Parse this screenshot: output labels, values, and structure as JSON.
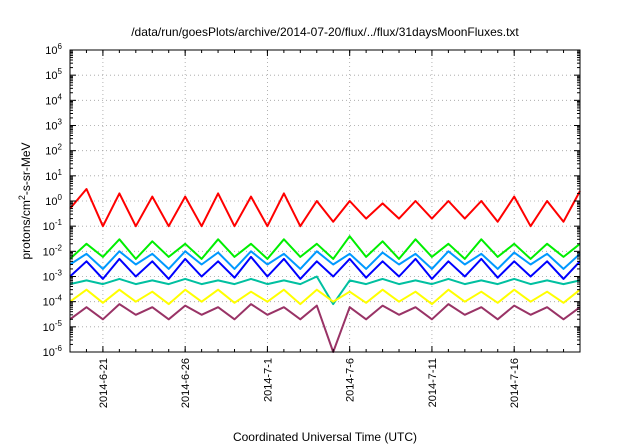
{
  "chart_data": {
    "type": "line",
    "title": "/data/run/goesPlots/archive/2014-07-20/flux/../flux/31daysMoonFluxes.txt",
    "xlabel": "Coordinated Universal Time (UTC)",
    "ylabel": {
      "base": "protons/cm",
      "sup": "2",
      "rest": "-s-sr-MeV"
    },
    "x_range": [
      "2014-06-19",
      "2014-07-20"
    ],
    "x_ticks": [
      "2014-6-21",
      "2014-6-26",
      "2014-7-1",
      "2014-7-6",
      "2014-7-11",
      "2014-7-16"
    ],
    "y_scale": "log",
    "ylim": [
      1e-06,
      1000000.0
    ],
    "y_ticks": [
      {
        "base": "10",
        "exp": "-6"
      },
      {
        "base": "10",
        "exp": "-5"
      },
      {
        "base": "10",
        "exp": "-4"
      },
      {
        "base": "10",
        "exp": "-3"
      },
      {
        "base": "10",
        "exp": "-2"
      },
      {
        "base": "10",
        "exp": "-1"
      },
      {
        "base": "10",
        "exp": "0"
      },
      {
        "base": "10",
        "exp": "1"
      },
      {
        "base": "10",
        "exp": "2"
      },
      {
        "base": "10",
        "exp": "3"
      },
      {
        "base": "10",
        "exp": "4"
      },
      {
        "base": "10",
        "exp": "5"
      },
      {
        "base": "10",
        "exp": "6"
      }
    ],
    "grid": true,
    "series": [
      {
        "color": "#ff0000",
        "x": [
          "2014-06-19",
          "2014-06-20",
          "2014-06-21",
          "2014-06-22",
          "2014-06-23",
          "2014-06-24",
          "2014-06-25",
          "2014-06-26",
          "2014-06-27",
          "2014-06-28",
          "2014-06-29",
          "2014-06-30",
          "2014-07-01",
          "2014-07-02",
          "2014-07-03",
          "2014-07-04",
          "2014-07-05",
          "2014-07-06",
          "2014-07-07",
          "2014-07-08",
          "2014-07-09",
          "2014-07-10",
          "2014-07-11",
          "2014-07-12",
          "2014-07-13",
          "2014-07-14",
          "2014-07-15",
          "2014-07-16",
          "2014-07-17",
          "2014-07-18",
          "2014-07-19",
          "2014-07-20"
        ],
        "values": [
          0.5,
          3,
          0.1,
          2,
          0.1,
          1.5,
          0.1,
          1.5,
          0.1,
          2,
          0.1,
          1.5,
          0.1,
          2,
          0.1,
          1,
          0.15,
          1,
          0.2,
          0.8,
          0.2,
          1,
          0.2,
          1,
          0.2,
          1,
          0.15,
          1.5,
          0.1,
          1,
          0.15,
          2.5
        ]
      },
      {
        "color": "#00ee00",
        "x": [
          "2014-06-19",
          "2014-06-20",
          "2014-06-21",
          "2014-06-22",
          "2014-06-23",
          "2014-06-24",
          "2014-06-25",
          "2014-06-26",
          "2014-06-27",
          "2014-06-28",
          "2014-06-29",
          "2014-06-30",
          "2014-07-01",
          "2014-07-02",
          "2014-07-03",
          "2014-07-04",
          "2014-07-05",
          "2014-07-06",
          "2014-07-07",
          "2014-07-08",
          "2014-07-09",
          "2014-07-10",
          "2014-07-11",
          "2014-07-12",
          "2014-07-13",
          "2014-07-14",
          "2014-07-15",
          "2014-07-16",
          "2014-07-17",
          "2014-07-18",
          "2014-07-19",
          "2014-07-20"
        ],
        "values": [
          0.005,
          0.02,
          0.006,
          0.03,
          0.005,
          0.025,
          0.006,
          0.02,
          0.005,
          0.03,
          0.006,
          0.02,
          0.005,
          0.03,
          0.006,
          0.02,
          0.005,
          0.04,
          0.006,
          0.025,
          0.005,
          0.03,
          0.006,
          0.02,
          0.005,
          0.03,
          0.006,
          0.02,
          0.005,
          0.02,
          0.006,
          0.02
        ]
      },
      {
        "color": "#0000ff",
        "x": [
          "2014-06-19",
          "2014-06-20",
          "2014-06-21",
          "2014-06-22",
          "2014-06-23",
          "2014-06-24",
          "2014-06-25",
          "2014-06-26",
          "2014-06-27",
          "2014-06-28",
          "2014-06-29",
          "2014-06-30",
          "2014-07-01",
          "2014-07-02",
          "2014-07-03",
          "2014-07-04",
          "2014-07-05",
          "2014-07-06",
          "2014-07-07",
          "2014-07-08",
          "2014-07-09",
          "2014-07-10",
          "2014-07-11",
          "2014-07-12",
          "2014-07-13",
          "2014-07-14",
          "2014-07-15",
          "2014-07-16",
          "2014-07-17",
          "2014-07-18",
          "2014-07-19",
          "2014-07-20"
        ],
        "values": [
          0.001,
          0.004,
          0.0008,
          0.005,
          0.001,
          0.004,
          0.0008,
          0.005,
          0.001,
          0.004,
          0.0009,
          0.006,
          0.001,
          0.005,
          0.0008,
          0.004,
          0.001,
          0.005,
          0.0009,
          0.004,
          0.001,
          0.005,
          0.0008,
          0.004,
          0.001,
          0.005,
          0.0009,
          0.004,
          0.001,
          0.004,
          0.0008,
          0.004
        ]
      },
      {
        "color": "#0099ff",
        "x": [
          "2014-06-19",
          "2014-06-20",
          "2014-06-21",
          "2014-06-22",
          "2014-06-23",
          "2014-06-24",
          "2014-06-25",
          "2014-06-26",
          "2014-06-27",
          "2014-06-28",
          "2014-06-29",
          "2014-06-30",
          "2014-07-01",
          "2014-07-02",
          "2014-07-03",
          "2014-07-04",
          "2014-07-05",
          "2014-07-06",
          "2014-07-07",
          "2014-07-08",
          "2014-07-09",
          "2014-07-10",
          "2014-07-11",
          "2014-07-12",
          "2014-07-13",
          "2014-07-14",
          "2014-07-15",
          "2014-07-16",
          "2014-07-17",
          "2014-07-18",
          "2014-07-19",
          "2014-07-20"
        ],
        "values": [
          0.003,
          0.008,
          0.002,
          0.01,
          0.003,
          0.008,
          0.002,
          0.01,
          0.003,
          0.009,
          0.002,
          0.01,
          0.003,
          0.008,
          0.002,
          0.01,
          0.003,
          0.008,
          0.002,
          0.009,
          0.003,
          0.008,
          0.002,
          0.01,
          0.003,
          0.008,
          0.002,
          0.009,
          0.003,
          0.008,
          0.002,
          0.008
        ]
      },
      {
        "color": "#00c0a0",
        "x": [
          "2014-06-19",
          "2014-06-20",
          "2014-06-21",
          "2014-06-22",
          "2014-06-23",
          "2014-06-24",
          "2014-06-25",
          "2014-06-26",
          "2014-06-27",
          "2014-06-28",
          "2014-06-29",
          "2014-06-30",
          "2014-07-01",
          "2014-07-02",
          "2014-07-03",
          "2014-07-04",
          "2014-07-05",
          "2014-07-06",
          "2014-07-07",
          "2014-07-08",
          "2014-07-09",
          "2014-07-10",
          "2014-07-11",
          "2014-07-12",
          "2014-07-13",
          "2014-07-14",
          "2014-07-15",
          "2014-07-16",
          "2014-07-17",
          "2014-07-18",
          "2014-07-19",
          "2014-07-20"
        ],
        "values": [
          0.0005,
          0.0007,
          0.0005,
          0.0008,
          0.0005,
          0.0007,
          0.0005,
          0.0008,
          0.0005,
          0.0007,
          0.0005,
          0.0008,
          0.0005,
          0.0007,
          0.0005,
          0.001,
          8e-05,
          0.0007,
          0.0005,
          0.0008,
          0.0005,
          0.0007,
          0.0005,
          0.0008,
          0.0005,
          0.0007,
          0.0005,
          0.0008,
          0.0005,
          0.0007,
          0.0005,
          0.0007
        ]
      },
      {
        "color": "#ffff00",
        "x": [
          "2014-06-19",
          "2014-06-20",
          "2014-06-21",
          "2014-06-22",
          "2014-06-23",
          "2014-06-24",
          "2014-06-25",
          "2014-06-26",
          "2014-06-27",
          "2014-06-28",
          "2014-06-29",
          "2014-06-30",
          "2014-07-01",
          "2014-07-02",
          "2014-07-03",
          "2014-07-04",
          "2014-07-05",
          "2014-07-06",
          "2014-07-07",
          "2014-07-08",
          "2014-07-09",
          "2014-07-10",
          "2014-07-11",
          "2014-07-12",
          "2014-07-13",
          "2014-07-14",
          "2014-07-15",
          "2014-07-16",
          "2014-07-17",
          "2014-07-18",
          "2014-07-19",
          "2014-07-20"
        ],
        "values": [
          0.0001,
          0.0003,
          9e-05,
          0.0003,
          0.0001,
          0.00025,
          8e-05,
          0.0003,
          0.0001,
          0.0003,
          9e-05,
          0.00025,
          0.0001,
          0.0003,
          8e-05,
          0.0003,
          0.0001,
          0.00025,
          9e-05,
          0.0003,
          0.0001,
          0.00025,
          8e-05,
          0.0003,
          0.0001,
          0.00025,
          9e-05,
          0.0003,
          0.0001,
          0.00025,
          9e-05,
          0.0003
        ]
      },
      {
        "color": "#993366",
        "x": [
          "2014-06-19",
          "2014-06-20",
          "2014-06-21",
          "2014-06-22",
          "2014-06-23",
          "2014-06-24",
          "2014-06-25",
          "2014-06-26",
          "2014-06-27",
          "2014-06-28",
          "2014-06-29",
          "2014-06-30",
          "2014-07-01",
          "2014-07-02",
          "2014-07-03",
          "2014-07-04",
          "2014-07-05",
          "2014-07-06",
          "2014-07-07",
          "2014-07-08",
          "2014-07-09",
          "2014-07-10",
          "2014-07-11",
          "2014-07-12",
          "2014-07-13",
          "2014-07-14",
          "2014-07-15",
          "2014-07-16",
          "2014-07-17",
          "2014-07-18",
          "2014-07-19",
          "2014-07-20"
        ],
        "values": [
          2e-05,
          6e-05,
          2e-05,
          8e-05,
          3e-05,
          6e-05,
          2e-05,
          7e-05,
          3e-05,
          6e-05,
          2e-05,
          8e-05,
          3e-05,
          6e-05,
          2e-05,
          7e-05,
          1e-06,
          6e-05,
          2e-05,
          7e-05,
          3e-05,
          6e-05,
          2e-05,
          8e-05,
          3e-05,
          6e-05,
          2e-05,
          7e-05,
          3e-05,
          6e-05,
          2e-05,
          6e-05
        ]
      }
    ]
  }
}
